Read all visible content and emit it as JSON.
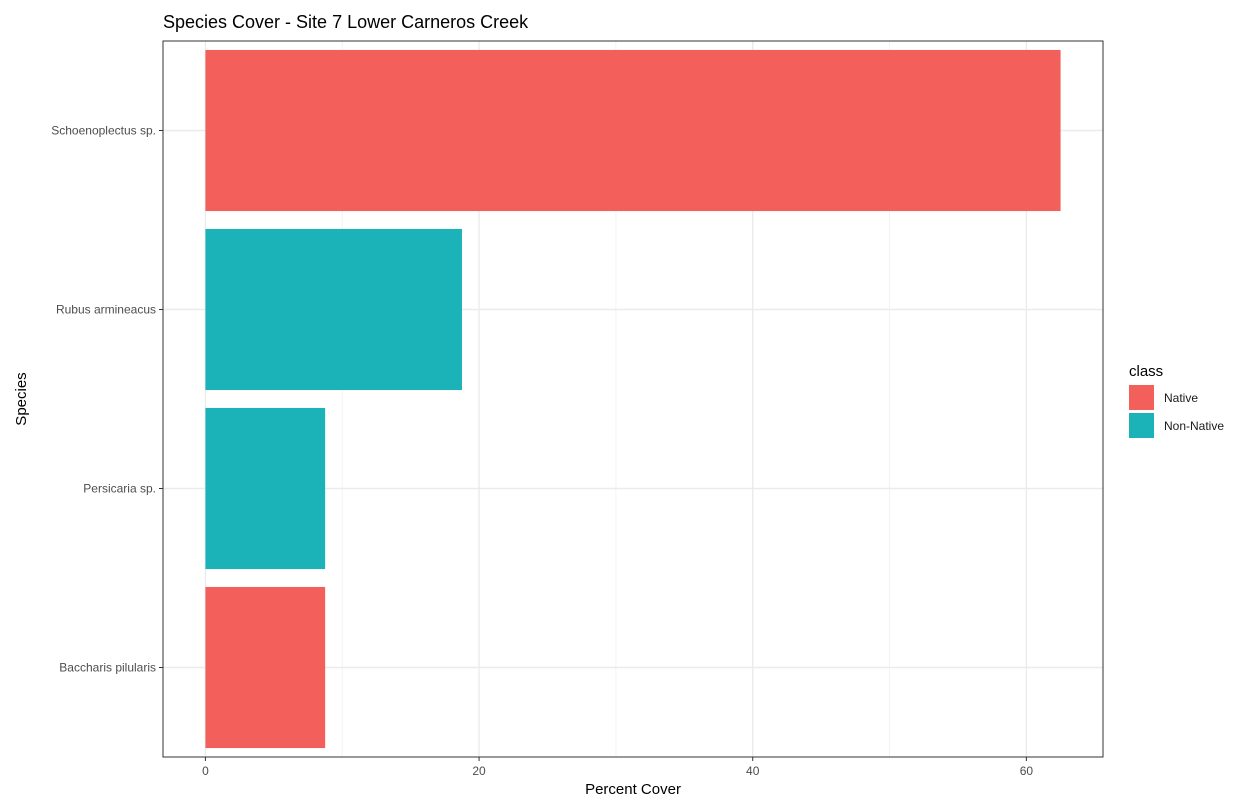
{
  "chart_data": {
    "type": "bar",
    "orientation": "horizontal",
    "title": "Species Cover - Site 7 Lower Carneros Creek",
    "xlabel": "Percent Cover",
    "ylabel": "Species",
    "categories": [
      "Schoenoplectus sp.",
      "Rubus armineacus",
      "Persicaria sp.",
      "Baccharis pilularis"
    ],
    "values": [
      62.5,
      18.75,
      8.75,
      8.75
    ],
    "class": [
      "Native",
      "Non-Native",
      "Non-Native",
      "Native"
    ],
    "xlim": [
      -3.1,
      65.6
    ],
    "xticks": [
      0,
      20,
      40,
      60
    ],
    "grid": true,
    "legend": {
      "title": "class",
      "position": "right",
      "entries": [
        {
          "label": "Native",
          "color": "#F35F5A"
        },
        {
          "label": "Non-Native",
          "color": "#1BB3B8"
        }
      ]
    },
    "colors": {
      "Native": "#F35F5A",
      "Non-Native": "#1BB3B8"
    }
  }
}
